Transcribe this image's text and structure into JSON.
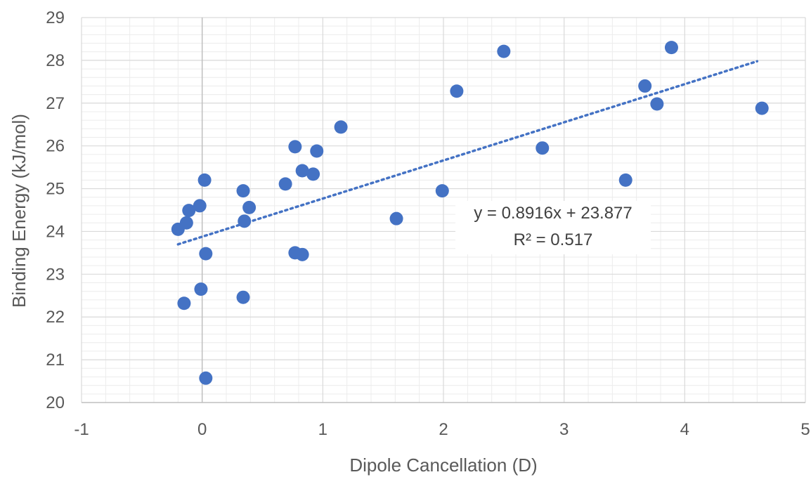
{
  "chart_data": {
    "type": "scatter",
    "title": "",
    "xlabel": "Dipole Cancellation (D)",
    "ylabel": "Binding Energy (kJ/mol)",
    "xlim": [
      -1,
      5
    ],
    "ylim": [
      20,
      29
    ],
    "x_ticks": [
      "-1",
      "0",
      "1",
      "2",
      "3",
      "4",
      "5"
    ],
    "y_ticks": [
      "20",
      "21",
      "22",
      "23",
      "24",
      "25",
      "26",
      "27",
      "28",
      "29"
    ],
    "grid": true,
    "minor_grid": true,
    "marker_color": "#4472C4",
    "trendline_color": "#4472C4",
    "series": [
      {
        "points": [
          {
            "x": -0.2,
            "y": 24.05
          },
          {
            "x": -0.13,
            "y": 24.2
          },
          {
            "x": -0.11,
            "y": 24.49
          },
          {
            "x": -0.02,
            "y": 24.6
          },
          {
            "x": 0.02,
            "y": 25.2
          },
          {
            "x": 0.03,
            "y": 23.48
          },
          {
            "x": -0.15,
            "y": 22.32
          },
          {
            "x": -0.01,
            "y": 22.65
          },
          {
            "x": 0.03,
            "y": 20.57
          },
          {
            "x": 0.34,
            "y": 24.95
          },
          {
            "x": 0.35,
            "y": 24.24
          },
          {
            "x": 0.39,
            "y": 24.56
          },
          {
            "x": 0.34,
            "y": 22.46
          },
          {
            "x": 0.69,
            "y": 25.11
          },
          {
            "x": 0.77,
            "y": 25.98
          },
          {
            "x": 0.83,
            "y": 25.42
          },
          {
            "x": 0.92,
            "y": 25.34
          },
          {
            "x": 0.95,
            "y": 25.88
          },
          {
            "x": 0.77,
            "y": 23.5
          },
          {
            "x": 0.83,
            "y": 23.46
          },
          {
            "x": 1.15,
            "y": 26.44
          },
          {
            "x": 1.61,
            "y": 24.3
          },
          {
            "x": 1.99,
            "y": 24.95
          },
          {
            "x": 2.11,
            "y": 27.28
          },
          {
            "x": 2.5,
            "y": 28.21
          },
          {
            "x": 2.82,
            "y": 25.95
          },
          {
            "x": 3.51,
            "y": 25.2
          },
          {
            "x": 3.67,
            "y": 27.4
          },
          {
            "x": 3.77,
            "y": 26.98
          },
          {
            "x": 3.89,
            "y": 28.3
          },
          {
            "x": 4.64,
            "y": 26.88
          }
        ]
      }
    ],
    "trendline": {
      "type": "linear",
      "slope": 0.8916,
      "intercept": 23.877,
      "x_range": [
        -0.2,
        4.6
      ],
      "style": "dotted"
    },
    "annotations": {
      "equation": "y = 0.8916x + 23.877",
      "r_squared": "R² = 0.517"
    }
  }
}
